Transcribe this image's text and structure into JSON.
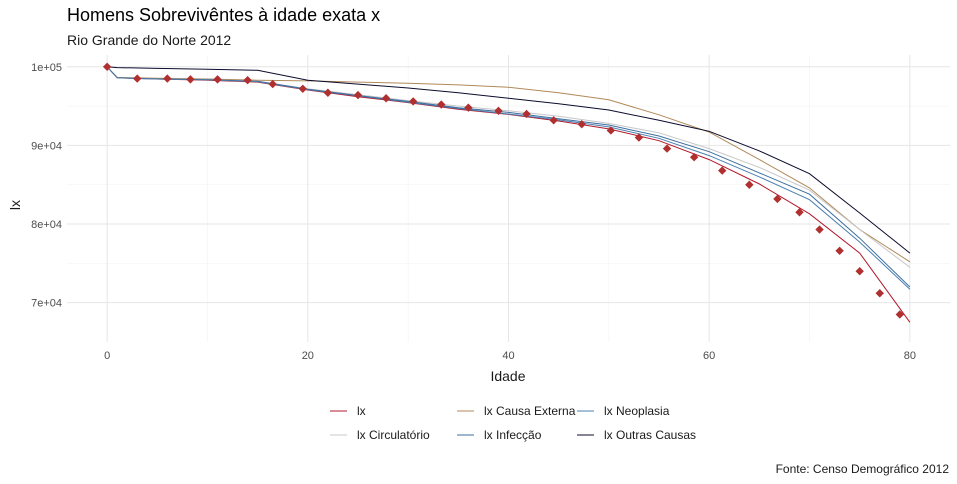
{
  "title": "Homens Sobrevivêntes à idade exata x",
  "subtitle": "Rio Grande do Norte 2012",
  "caption": "Fonte: Censo Demográfico 2012",
  "chart_data": {
    "type": "line",
    "title": "Homens Sobrevivêntes à idade exata x",
    "subtitle": "Rio Grande do Norte 2012",
    "xlabel": "Idade",
    "ylabel": "lx",
    "xlim": [
      -4,
      84
    ],
    "ylim": [
      65000,
      101500
    ],
    "x_ticks": [
      0,
      20,
      40,
      60,
      80
    ],
    "x_tick_labels": [
      "0",
      "20",
      "40",
      "60",
      "80"
    ],
    "y_ticks": [
      70000,
      80000,
      90000,
      100000
    ],
    "y_tick_labels": [
      "7e+04",
      "8e+04",
      "9e+04",
      "1e+05"
    ],
    "grid": true,
    "legend_position": "bottom",
    "series": [
      {
        "name": "lx",
        "color": "#b2182b",
        "x": [
          0,
          1,
          5,
          10,
          15,
          20,
          25,
          30,
          35,
          40,
          45,
          50,
          55,
          60,
          65,
          70,
          75,
          80
        ],
        "y": [
          100000,
          98600,
          98450,
          98300,
          98050,
          97050,
          96200,
          95450,
          94600,
          93950,
          93100,
          92100,
          90600,
          88200,
          85100,
          81300,
          76300,
          67500
        ]
      },
      {
        "name": "lx Causa Externa",
        "color": "#b08a5a",
        "x": [
          0,
          1,
          5,
          10,
          15,
          20,
          25,
          30,
          35,
          40,
          45,
          50,
          55,
          60,
          65,
          70,
          75,
          80
        ],
        "y": [
          100000,
          98650,
          98550,
          98450,
          98300,
          98200,
          98050,
          97900,
          97700,
          97400,
          96700,
          95800,
          93900,
          91700,
          88200,
          84600,
          79300,
          75200
        ]
      },
      {
        "name": "lx Neoplasia",
        "color": "#4a7fb0",
        "x": [
          0,
          1,
          5,
          10,
          15,
          20,
          25,
          30,
          35,
          40,
          45,
          50,
          55,
          60,
          65,
          70,
          75,
          80
        ],
        "y": [
          100000,
          98600,
          98450,
          98350,
          98100,
          97100,
          96300,
          95500,
          94700,
          94000,
          93250,
          92350,
          90900,
          88700,
          86000,
          83100,
          77700,
          71700
        ]
      },
      {
        "name": "lx Circulatório",
        "color": "#c8c8c8",
        "x": [
          0,
          1,
          5,
          10,
          15,
          20,
          25,
          30,
          35,
          40,
          45,
          50,
          55,
          60,
          65,
          70,
          75,
          80
        ],
        "y": [
          100000,
          98600,
          98450,
          98350,
          98150,
          97200,
          96450,
          95700,
          95000,
          94400,
          93700,
          92800,
          91600,
          89600,
          87200,
          84300,
          79300,
          74500
        ]
      },
      {
        "name": "lx Infecção",
        "color": "#3d6fa0",
        "x": [
          0,
          1,
          5,
          10,
          15,
          20,
          25,
          30,
          35,
          40,
          45,
          50,
          55,
          60,
          65,
          70,
          75,
          80
        ],
        "y": [
          100000,
          98600,
          98450,
          98350,
          98150,
          97150,
          96350,
          95600,
          94800,
          94200,
          93400,
          92600,
          91200,
          89200,
          86500,
          83800,
          78200,
          72000
        ]
      },
      {
        "name": "lx Outras Causas",
        "color": "#0b0b2e",
        "x": [
          0,
          1,
          5,
          10,
          15,
          20,
          25,
          30,
          35,
          40,
          45,
          50,
          55,
          60,
          65,
          70,
          75,
          80
        ],
        "y": [
          100000,
          99900,
          99800,
          99700,
          99550,
          98300,
          97800,
          97300,
          96700,
          96000,
          95300,
          94500,
          93200,
          91800,
          89300,
          86400,
          81400,
          76300
        ]
      }
    ],
    "markers": {
      "series": "lx",
      "color": "#b03030",
      "x": [
        0,
        3,
        6,
        8.3,
        11,
        14,
        16.5,
        19.5,
        22,
        25,
        27.8,
        30.5,
        33.3,
        36,
        39,
        41.8,
        44.5,
        47.3,
        50.2,
        53,
        55.8,
        58.5,
        61.3,
        64,
        66.8,
        69,
        71,
        73,
        75,
        77,
        79
      ],
      "y": [
        100000,
        98500,
        98500,
        98400,
        98400,
        98300,
        97800,
        97200,
        96700,
        96400,
        96000,
        95600,
        95200,
        94800,
        94400,
        94000,
        93200,
        92700,
        91900,
        91000,
        89600,
        88500,
        86800,
        85000,
        83200,
        81500,
        79300,
        76600,
        74000,
        71200,
        68500
      ]
    }
  }
}
